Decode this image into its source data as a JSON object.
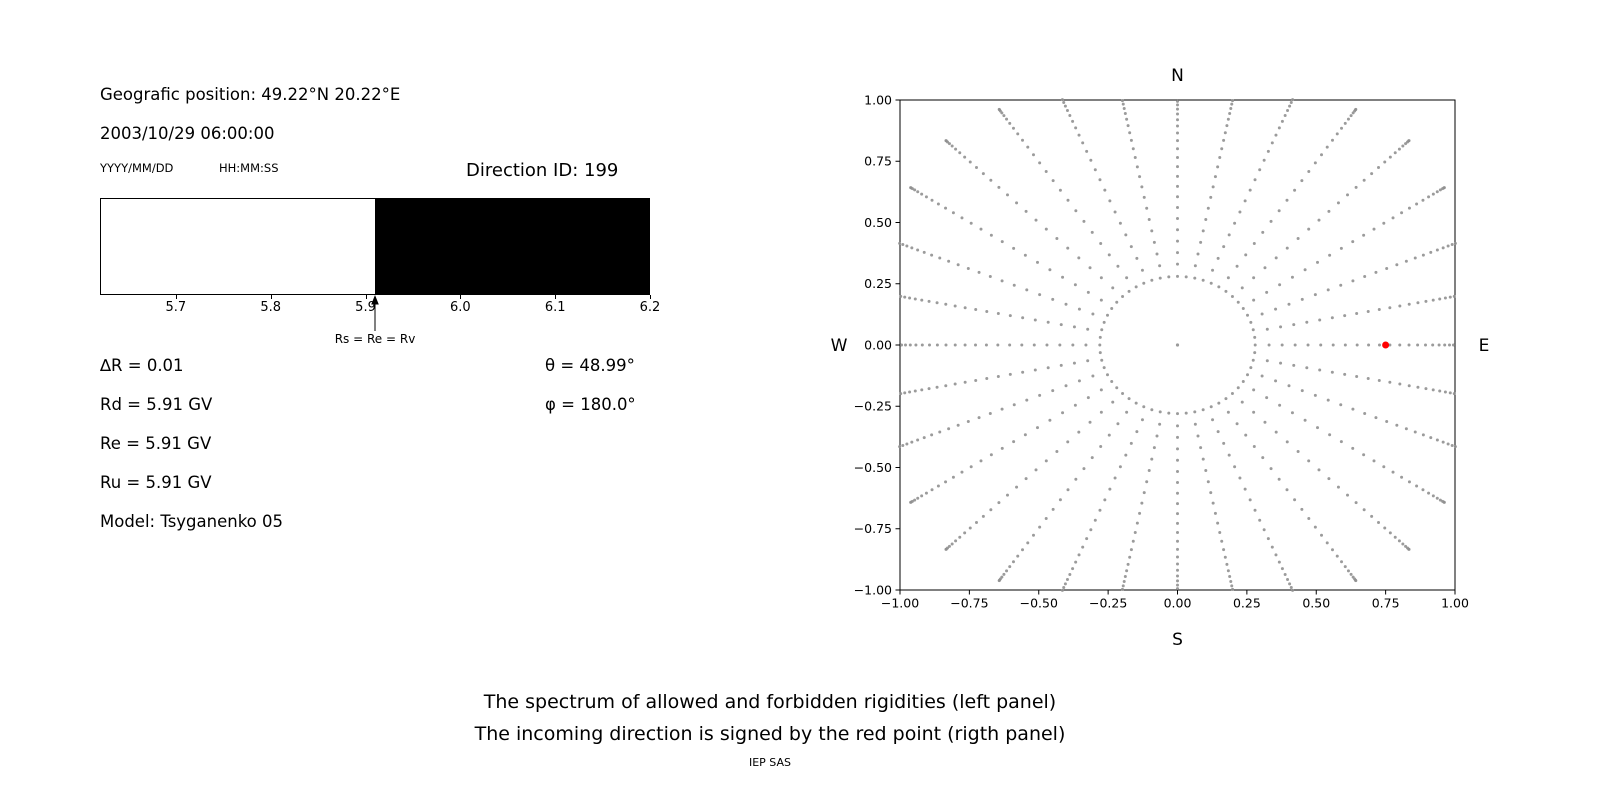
{
  "header": {
    "position_label": "Geografic position: 49.22°N 20.22°E",
    "datetime": "2003/10/29 06:00:00",
    "date_format_label": "YYYY/MM/DD",
    "time_format_label": "HH:MM:SS",
    "direction_id_label": "Direction ID: 199"
  },
  "left_panel": {
    "params": {
      "delta_r": "∆R = 0.01",
      "theta": "θ = 48.99°",
      "rd": "Rd = 5.91 GV",
      "phi": "φ = 180.0°",
      "re": "Re = 5.91 GV",
      "ru": "Ru = 5.91 GV",
      "model": "Model: Tsyganenko 05"
    }
  },
  "captions": {
    "line1": "The spectrum of allowed and forbidden rigidities (left panel)",
    "line2": "The incoming direction is signed by the red point (rigth panel)",
    "credit": "IEP SAS"
  },
  "chart_data": [
    {
      "type": "bar",
      "title": "Rigidity spectrum: allowed (white) and forbidden (black)",
      "x_unit": "GV",
      "x_range": [
        5.62,
        6.2
      ],
      "boundary": 5.91,
      "segments": [
        {
          "from": 5.62,
          "to": 5.91,
          "state": "allowed",
          "color": "#ffffff"
        },
        {
          "from": 5.91,
          "to": 6.2,
          "state": "forbidden",
          "color": "#000000"
        }
      ],
      "xticks": [
        {
          "value": 5.7,
          "label": "5.7"
        },
        {
          "value": 5.8,
          "label": "5.8"
        },
        {
          "value": 5.9,
          "label": "5.9"
        },
        {
          "value": 6.0,
          "label": "6.0"
        },
        {
          "value": 6.1,
          "label": "6.1"
        },
        {
          "value": 6.2,
          "label": "6.2"
        }
      ],
      "annotation": {
        "x": 5.91,
        "label": "Rs = Re = Rv"
      }
    },
    {
      "type": "scatter",
      "title": "",
      "xlim": [
        -1.0,
        1.0
      ],
      "ylim": [
        -1.0,
        1.0
      ],
      "compass": {
        "top": "N",
        "bottom": "S",
        "left": "W",
        "right": "E"
      },
      "xticks": [
        {
          "value": -1.0,
          "label": "−1.00"
        },
        {
          "value": -0.75,
          "label": "−0.75"
        },
        {
          "value": -0.5,
          "label": "−0.50"
        },
        {
          "value": -0.25,
          "label": "−0.25"
        },
        {
          "value": 0.0,
          "label": "0.00"
        },
        {
          "value": 0.25,
          "label": "0.25"
        },
        {
          "value": 0.5,
          "label": "0.50"
        },
        {
          "value": 0.75,
          "label": "0.75"
        },
        {
          "value": 1.0,
          "label": "1.00"
        }
      ],
      "yticks": [
        {
          "value": 1.0,
          "label": "1.00"
        },
        {
          "value": 0.75,
          "label": "0.75"
        },
        {
          "value": 0.5,
          "label": "0.50"
        },
        {
          "value": 0.25,
          "label": "0.25"
        },
        {
          "value": 0.0,
          "label": "0.00"
        },
        {
          "value": -0.25,
          "label": "−0.25"
        },
        {
          "value": -0.5,
          "label": "−0.50"
        },
        {
          "value": -0.75,
          "label": "−0.75"
        },
        {
          "value": -1.0,
          "label": "−1.00"
        }
      ],
      "dot_color": "#909090",
      "pattern": {
        "description": "gray dots: center dot, inner ring, 32 radial spokes with dot density increasing outward, clipped at plot edge",
        "spokes": 32,
        "points_per_spoke": 24,
        "spoke_r_start": 0.33,
        "spoke_r_end": 1.02,
        "spoke_r_diag_extra": 0.16,
        "ring_radius": 0.28,
        "ring_points": 56,
        "center_dot": true
      },
      "red_point": {
        "x": 0.75,
        "y": 0.0,
        "color": "#ff0000",
        "meaning": "incoming direction"
      }
    }
  ]
}
